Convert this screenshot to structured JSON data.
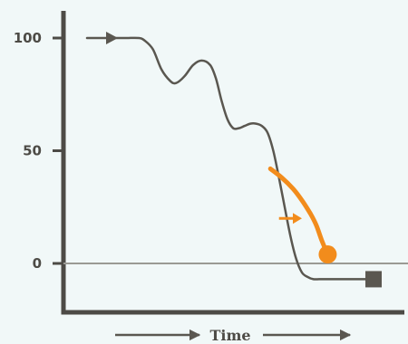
{
  "chart_data": {
    "type": "line",
    "xlabel": "Time",
    "ylabel": "",
    "ylim": [
      -20,
      110
    ],
    "yticks": [
      {
        "value": 100,
        "label": "100"
      },
      {
        "value": 50,
        "label": "50"
      },
      {
        "value": 0,
        "label": "0"
      }
    ],
    "grid": false,
    "legend": "none",
    "series": [
      {
        "role": "main-trace",
        "color": "#5a5750",
        "start_marker": "arrow",
        "end_marker": "square",
        "x": [
          0,
          4,
          8,
          11,
          14,
          18,
          20,
          23,
          26,
          29,
          31,
          34,
          37,
          40,
          43,
          45,
          47,
          49,
          51,
          53,
          55,
          57,
          59,
          61,
          63,
          65,
          67,
          69,
          71,
          73,
          75,
          77,
          79,
          81,
          83,
          85,
          88,
          92,
          96,
          100
        ],
        "y": [
          100,
          100,
          100,
          100,
          100,
          100,
          99,
          95,
          86,
          81,
          80,
          83,
          88,
          90,
          88,
          82,
          72,
          64,
          60,
          60,
          61,
          62,
          62,
          61,
          58,
          50,
          38,
          25,
          12,
          2,
          -4,
          -6,
          -7,
          -7,
          -7,
          -7,
          -7,
          -7,
          -7,
          -7
        ]
      },
      {
        "role": "branch",
        "color": "#f28c1c",
        "end_marker": "circle",
        "x": [
          64,
          68,
          72,
          75,
          78,
          80,
          82,
          84
        ],
        "y": [
          42,
          38,
          33,
          28,
          22,
          17,
          10,
          4
        ]
      }
    ],
    "annotations": [
      {
        "type": "arrow",
        "color": "#f28c1c",
        "from": {
          "x": 67,
          "y": 20
        },
        "to": {
          "x": 75,
          "y": 20
        }
      }
    ]
  }
}
